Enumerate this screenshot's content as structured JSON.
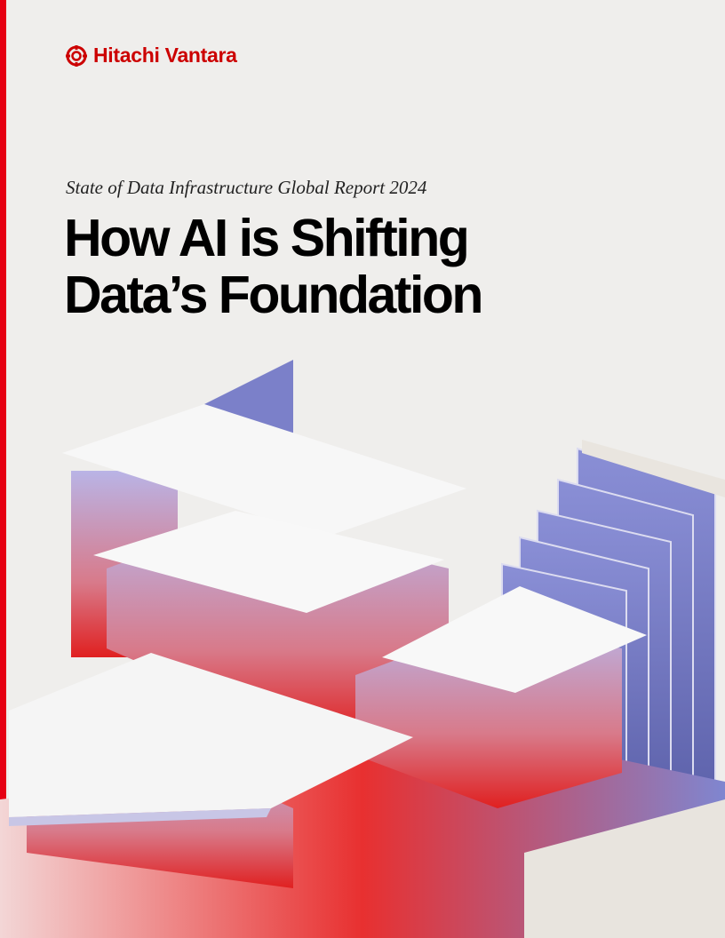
{
  "brand": {
    "name": "Hitachi Vantara",
    "color": "#cc0000",
    "logo_icon": "hitachi-mark-icon"
  },
  "cover": {
    "subtitle": "State of Data Infrastructure Global Report 2024",
    "title_line1": "How AI is Shifting",
    "title_line2": "Data’s Foundation"
  },
  "colors": {
    "accent": "#e60012",
    "background": "#efeeec"
  }
}
